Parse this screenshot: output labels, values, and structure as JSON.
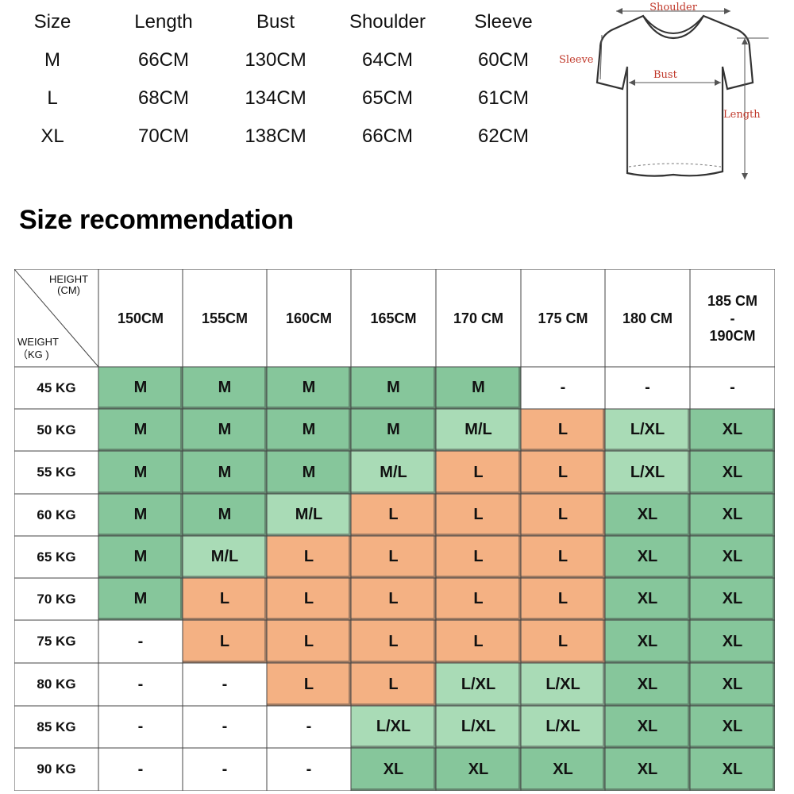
{
  "measurements": {
    "headers": [
      "Size",
      "Length",
      "Bust",
      "Shoulder",
      "Sleeve"
    ],
    "rows": [
      [
        "M",
        "66CM",
        "130CM",
        "64CM",
        "60CM"
      ],
      [
        "L",
        "68CM",
        "134CM",
        "65CM",
        "61CM"
      ],
      [
        "XL",
        "70CM",
        "138CM",
        "66CM",
        "62CM"
      ]
    ]
  },
  "diagram": {
    "labels": {
      "shoulder": "Shoulder",
      "sleeve": "Sleeve",
      "bust": "Bust",
      "length": "Length"
    }
  },
  "recommendation": {
    "title": "Size recommendation",
    "corner_height_label": "HEIGHT\n(CM)",
    "corner_weight_label": "WEIGHT\n（KG )",
    "heights": [
      "150CM",
      "155CM",
      "160CM",
      "165CM",
      "170 CM",
      "175 CM",
      "180 CM",
      "185 CM\n-\n190CM"
    ],
    "weights": [
      "45 KG",
      "50 KG",
      "55 KG",
      "60 KG",
      "65 KG",
      "70 KG",
      "75 KG",
      "80 KG",
      "85 KG",
      "90 KG"
    ],
    "sizes": [
      [
        "M",
        "M",
        "M",
        "M",
        "M",
        "-",
        "-",
        "-"
      ],
      [
        "M",
        "M",
        "M",
        "M",
        "M/L",
        "L",
        "L/XL",
        "XL"
      ],
      [
        "M",
        "M",
        "M",
        "M/L",
        "L",
        "L",
        "L/XL",
        "XL"
      ],
      [
        "M",
        "M",
        "M/L",
        "L",
        "L",
        "L",
        "XL",
        "XL"
      ],
      [
        "M",
        "M/L",
        "L",
        "L",
        "L",
        "L",
        "XL",
        "XL"
      ],
      [
        "M",
        "L",
        "L",
        "L",
        "L",
        "L",
        "XL",
        "XL"
      ],
      [
        "-",
        "L",
        "L",
        "L",
        "L",
        "L",
        "XL",
        "XL"
      ],
      [
        "-",
        "-",
        "L",
        "L",
        "L/XL",
        "L/XL",
        "XL",
        "XL"
      ],
      [
        "-",
        "-",
        "-",
        "L/XL",
        "L/XL",
        "L/XL",
        "XL",
        "XL"
      ],
      [
        "-",
        "-",
        "-",
        "XL",
        "XL",
        "XL",
        "XL",
        "XL"
      ]
    ],
    "colors": {
      "M": "#86c69b",
      "XL": "#86c69b",
      "M/L": "#a9dbb6",
      "L/XL": "#a9dbb6",
      "L": "#f4b183",
      "-": "#ffffff",
      "grid_line": "#444444"
    }
  }
}
